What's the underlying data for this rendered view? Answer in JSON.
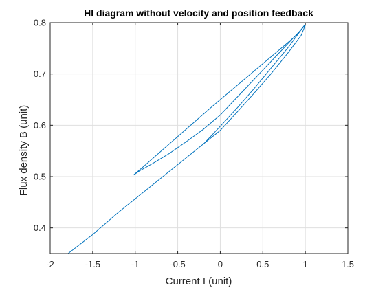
{
  "chart_data": {
    "type": "line",
    "title": "HI diagram without velocity and position feedback",
    "xlabel": "Current I (unit)",
    "ylabel": "Flux density B (unit)",
    "xlim": [
      -2,
      1.5
    ],
    "ylim": [
      0.35,
      0.8
    ],
    "xticks": [
      -2,
      -1.5,
      -1,
      -0.5,
      0,
      0.5,
      1,
      1.5
    ],
    "xtick_labels": [
      "-2",
      "-1.5",
      "-1",
      "-0.5",
      "0",
      "0.5",
      "1",
      "1.5"
    ],
    "yticks": [
      0.4,
      0.5,
      0.6,
      0.7,
      0.8
    ],
    "ytick_labels": [
      "0.4",
      "0.5",
      "0.6",
      "0.7",
      "0.8"
    ],
    "grid": true,
    "line_color": "#0072BD",
    "series": [
      {
        "x": [
          -1.79,
          -1.5,
          -1.2,
          -0.9,
          -0.6,
          -0.3,
          0.0,
          0.2,
          0.4,
          0.6,
          0.8,
          0.95,
          1.0
        ],
        "y": [
          0.35,
          0.387,
          0.43,
          0.47,
          0.51,
          0.55,
          0.59,
          0.626,
          0.663,
          0.701,
          0.742,
          0.775,
          0.795
        ]
      },
      {
        "x": [
          1.0,
          0.8,
          0.6,
          0.4,
          0.2,
          0.0,
          -0.2,
          -0.4,
          -0.6,
          -0.8,
          -0.95,
          -1.02
        ],
        "y": [
          0.795,
          0.76,
          0.725,
          0.69,
          0.655,
          0.62,
          0.592,
          0.568,
          0.545,
          0.525,
          0.511,
          0.503
        ]
      },
      {
        "x": [
          -1.02,
          -0.9,
          -0.7,
          -0.5,
          -0.3,
          -0.1,
          0.1,
          0.3,
          0.5,
          0.7,
          0.9,
          1.0
        ],
        "y": [
          0.503,
          0.52,
          0.549,
          0.578,
          0.607,
          0.636,
          0.664,
          0.692,
          0.72,
          0.748,
          0.776,
          0.797
        ]
      },
      {
        "x": [
          1.0,
          0.8,
          0.6,
          0.4,
          0.2,
          0.0,
          -0.2
        ],
        "y": [
          0.797,
          0.752,
          0.712,
          0.672,
          0.634,
          0.598,
          0.563
        ]
      }
    ]
  }
}
